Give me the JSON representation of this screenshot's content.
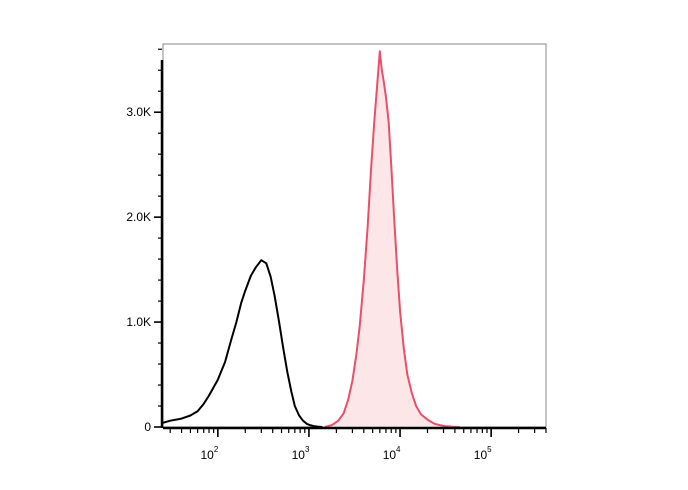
{
  "chart_data": {
    "type": "area",
    "title": "",
    "xlabel": "",
    "ylabel": "",
    "x_scale": "log",
    "xlim": [
      25,
      400000
    ],
    "ylim": [
      0,
      3650
    ],
    "x_ticks": [
      {
        "base": "10",
        "exp": "2",
        "value": 100
      },
      {
        "base": "10",
        "exp": "3",
        "value": 1000
      },
      {
        "base": "10",
        "exp": "4",
        "value": 10000
      },
      {
        "base": "10",
        "exp": "5",
        "value": 100000
      }
    ],
    "y_ticks": [
      {
        "label": "0",
        "value": 0
      },
      {
        "label": "1.0K",
        "value": 1000
      },
      {
        "label": "2.0K",
        "value": 2000
      },
      {
        "label": "3.0K",
        "value": 3000
      }
    ],
    "grid": false,
    "legend": "none",
    "series": [
      {
        "style": "black outline",
        "color": "#000000",
        "fill": "none",
        "x": [
          25,
          30,
          40,
          50,
          60,
          70,
          80,
          90,
          100,
          120,
          140,
          160,
          180,
          200,
          230,
          260,
          300,
          340,
          380,
          420,
          470,
          520,
          580,
          640,
          700,
          780,
          860,
          950,
          1050,
          1150,
          1250,
          1400
        ],
        "y": [
          40,
          60,
          80,
          110,
          150,
          220,
          300,
          380,
          450,
          620,
          830,
          1000,
          1180,
          1300,
          1440,
          1520,
          1590,
          1560,
          1430,
          1250,
          1000,
          760,
          520,
          340,
          200,
          110,
          60,
          30,
          15,
          8,
          4,
          0
        ]
      },
      {
        "style": "red outline, light red fill",
        "color": "#e8506a",
        "fill": "#fde6e8",
        "x": [
          1500,
          1800,
          2100,
          2400,
          2700,
          3000,
          3300,
          3600,
          4000,
          4400,
          4800,
          5200,
          5600,
          6000,
          6300,
          6600,
          7000,
          7500,
          8000,
          8600,
          9300,
          10000,
          11000,
          12000,
          13500,
          15000,
          17000,
          20000,
          24000,
          30000,
          38000,
          45000
        ],
        "y": [
          0,
          20,
          60,
          130,
          260,
          440,
          680,
          950,
          1400,
          1900,
          2450,
          2900,
          3250,
          3580,
          3400,
          3300,
          3150,
          2900,
          2500,
          2000,
          1500,
          1100,
          750,
          500,
          320,
          200,
          120,
          70,
          30,
          10,
          3,
          0
        ]
      }
    ]
  }
}
